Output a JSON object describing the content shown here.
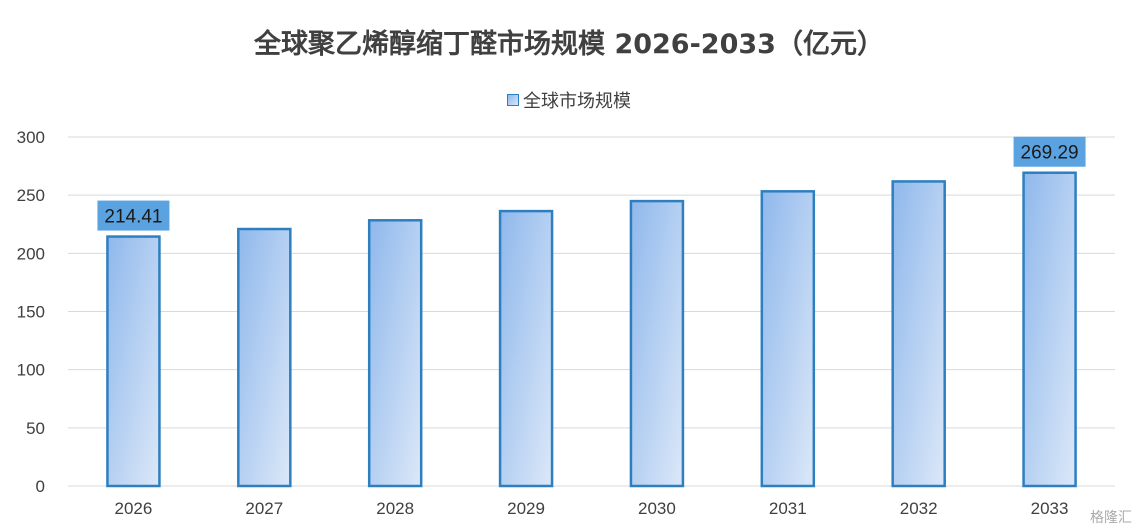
{
  "chart_data": {
    "type": "bar",
    "title": "全球聚乙烯醇缩丁醛市场规模 2026-2033（亿元）",
    "categories": [
      "2026",
      "2027",
      "2028",
      "2029",
      "2030",
      "2031",
      "2032",
      "2033"
    ],
    "series": [
      {
        "name": "全球市场规模",
        "values": [
          214.41,
          220.9,
          228.4,
          236.3,
          244.9,
          253.3,
          261.8,
          269.29
        ]
      }
    ],
    "data_labels": [
      {
        "category": "2026",
        "text": "214.41"
      },
      {
        "category": "2033",
        "text": "269.29"
      }
    ],
    "yticks": [
      "0",
      "50",
      "100",
      "150",
      "200",
      "250",
      "300"
    ],
    "ylim": [
      0,
      300
    ],
    "grid": true,
    "legend_position": "top",
    "colors": {
      "bar_fill_top": "#8fb8ec",
      "bar_fill_bottom": "#dce8f8",
      "bar_border": "#2e7fc0",
      "label_box": "#5ba3e0",
      "grid": "#d9d9d9",
      "text": "#404040"
    }
  },
  "watermark": "格隆汇"
}
